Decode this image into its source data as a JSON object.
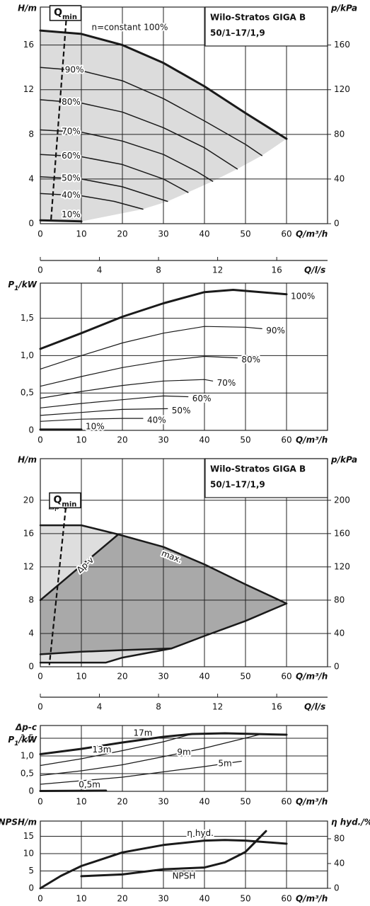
{
  "chart_data": [
    {
      "type": "line",
      "title": "Wilo-Stratos GIGA B",
      "subtitle": "50/1–17/1,9",
      "xlabel": "Q/m³/h",
      "ylabel": "H/m",
      "y2label": "p/kPa",
      "xlim": [
        0,
        70
      ],
      "xticks": [
        0,
        10,
        20,
        30,
        40,
        50,
        60
      ],
      "ylim": [
        0,
        19.4
      ],
      "yticks": [
        0,
        4,
        8,
        12,
        16
      ],
      "y2lim": [
        0,
        194
      ],
      "y2ticks": [
        0,
        40,
        80,
        120,
        160
      ],
      "x2label": "Q/l/s",
      "x2lim": [
        0,
        19.44
      ],
      "x2ticks": [
        0,
        4,
        8,
        12,
        16
      ],
      "qmin": {
        "main": "Q",
        "sub": "min",
        "x": [
          6.3,
          2.6
        ],
        "y": [
          18.2,
          0.3
        ]
      },
      "grid": true,
      "color": "#1a1a1a",
      "shade": "#dcdcdc",
      "series": [
        {
          "name": "n=constant 100%",
          "linewidth": 3,
          "x": [
            0,
            10,
            20,
            30,
            40,
            50,
            60
          ],
          "values": [
            17.3,
            17,
            16,
            14.4,
            12.3,
            9.9,
            7.6
          ]
        },
        {
          "name": "90%",
          "linewidth": 1.5,
          "x": [
            0,
            10,
            20,
            30,
            40,
            50,
            54
          ],
          "values": [
            14,
            13.7,
            12.8,
            11.2,
            9.2,
            7.1,
            6.1
          ]
        },
        {
          "name": "80%",
          "linewidth": 1.5,
          "x": [
            0,
            10,
            20,
            30,
            40,
            48
          ],
          "values": [
            11.1,
            10.8,
            10,
            8.6,
            6.8,
            4.9
          ]
        },
        {
          "name": "70%",
          "linewidth": 1.5,
          "x": [
            0,
            10,
            20,
            30,
            38,
            42
          ],
          "values": [
            8.4,
            8.2,
            7.4,
            6.2,
            4.7,
            3.8
          ]
        },
        {
          "name": "60%",
          "linewidth": 1.5,
          "x": [
            0,
            10,
            20,
            30,
            36
          ],
          "values": [
            6.2,
            6,
            5.3,
            4,
            2.8
          ]
        },
        {
          "name": "50%",
          "linewidth": 1.5,
          "x": [
            0,
            10,
            20,
            31
          ],
          "values": [
            4.2,
            4,
            3.3,
            2
          ]
        },
        {
          "name": "40%",
          "linewidth": 1.5,
          "x": [
            0,
            10,
            18,
            25
          ],
          "values": [
            2.7,
            2.5,
            2,
            1.3
          ]
        },
        {
          "name": "10%",
          "linewidth": 3,
          "x": [
            0,
            10
          ],
          "values": [
            0.3,
            0.2
          ]
        }
      ]
    },
    {
      "type": "line",
      "xlabel": "Q/m³/h",
      "ylabel": {
        "main": "P",
        "sub": "1",
        "unit": "/kW"
      },
      "xlim": [
        0,
        70
      ],
      "xticks": [
        0,
        10,
        20,
        30,
        40,
        50,
        60
      ],
      "ylim": [
        0,
        1.97
      ],
      "yticks": [
        0,
        {
          "value": 0.5,
          "label": "0,5"
        },
        {
          "value": 1,
          "label": "1,0"
        },
        {
          "value": 1.5,
          "label": "1,5"
        }
      ],
      "grid": true,
      "color": "#1a1a1a",
      "series": [
        {
          "name": "100%",
          "linewidth": 3,
          "x": [
            0,
            10,
            20,
            30,
            40,
            47,
            60
          ],
          "values": [
            1.09,
            1.3,
            1.52,
            1.7,
            1.85,
            1.88,
            1.82
          ]
        },
        {
          "name": "90%",
          "linewidth": 1.2,
          "x": [
            0,
            10,
            20,
            30,
            40,
            50,
            54
          ],
          "values": [
            0.82,
            1,
            1.17,
            1.3,
            1.39,
            1.38,
            1.36
          ]
        },
        {
          "name": "80%",
          "linewidth": 1.2,
          "x": [
            0,
            10,
            20,
            30,
            40,
            48
          ],
          "values": [
            0.59,
            0.72,
            0.84,
            0.93,
            0.99,
            0.97
          ]
        },
        {
          "name": "70%",
          "linewidth": 1.2,
          "x": [
            0,
            10,
            20,
            30,
            40,
            42
          ],
          "values": [
            0.43,
            0.52,
            0.6,
            0.66,
            0.68,
            0.66
          ]
        },
        {
          "name": "60%",
          "linewidth": 1.2,
          "x": [
            0,
            10,
            20,
            30,
            36
          ],
          "values": [
            0.3,
            0.36,
            0.41,
            0.46,
            0.45
          ]
        },
        {
          "name": "50%",
          "linewidth": 1.2,
          "x": [
            0,
            10,
            20,
            31
          ],
          "values": [
            0.2,
            0.24,
            0.28,
            0.29
          ]
        },
        {
          "name": "40%",
          "linewidth": 1.2,
          "x": [
            0,
            10,
            20,
            25
          ],
          "values": [
            0.12,
            0.15,
            0.16,
            0.16
          ]
        },
        {
          "name": "10%",
          "linewidth": 3,
          "x": [
            0,
            10
          ],
          "values": [
            0.01,
            0.01
          ]
        }
      ]
    },
    {
      "type": "range",
      "title": "Wilo-Stratos GIGA B",
      "subtitle": "50/1–17/1,9",
      "xlabel": "Q/m³/h",
      "ylabel": "H/m",
      "y2label": "p/kPa",
      "xlim": [
        0,
        70
      ],
      "xticks": [
        0,
        10,
        20,
        30,
        40,
        50,
        60
      ],
      "ylim": [
        0,
        25
      ],
      "yticks": [
        0,
        4,
        8,
        12,
        16,
        20
      ],
      "y2lim": [
        0,
        250
      ],
      "y2ticks": [
        0,
        40,
        80,
        120,
        160,
        200
      ],
      "x2label": "Q/l/s",
      "x2lim": [
        0,
        19.44
      ],
      "x2ticks": [
        0,
        4,
        8,
        12,
        16
      ],
      "qmin": {
        "main": "Q",
        "sub": "min",
        "x": [
          6.2,
          2.2
        ],
        "y": [
          19.1,
          0.2
        ]
      },
      "grid": true,
      "color": "#1a1a1a",
      "colors": {
        "band": "#dedede",
        "range": "#a9a9a9"
      },
      "series": [
        {
          "name": "Δp-c",
          "linewidth": 2.5,
          "x": [
            0,
            10,
            19
          ],
          "values": [
            17,
            17,
            15.9
          ]
        },
        {
          "name": "Δp-v",
          "linewidth": 2.5,
          "x": [
            0,
            19
          ],
          "values": [
            8,
            15.9
          ]
        },
        {
          "name": "max.",
          "linewidth": 2.5,
          "x": [
            19,
            30,
            40,
            50,
            60
          ],
          "values": [
            15.9,
            14.4,
            12.3,
            9.9,
            7.6
          ]
        },
        {
          "linewidth": 2.5,
          "x": [
            60,
            50,
            40,
            32,
            20,
            16,
            0
          ],
          "values": [
            7.6,
            5.5,
            3.7,
            2.2,
            1.1,
            0.5,
            0.5
          ]
        },
        {
          "linewidth": 2.5,
          "x": [
            0,
            10,
            20,
            32
          ],
          "values": [
            1.5,
            1.8,
            2,
            2.2
          ]
        }
      ]
    },
    {
      "type": "line",
      "xlabel": "Q/m³/h",
      "ylabel_top": "Δp-c",
      "ylabel": {
        "main": "P",
        "sub": "1",
        "unit": "/kW"
      },
      "xlim": [
        0,
        70
      ],
      "xticks": [
        0,
        10,
        20,
        30,
        40,
        50,
        60
      ],
      "ylim": [
        0,
        1.86
      ],
      "yticks": [
        0,
        {
          "value": 0.5,
          "label": "0,5"
        },
        {
          "value": 1,
          "label": "1,0"
        },
        {
          "value": 1.5,
          "label": "1,5"
        }
      ],
      "grid": true,
      "color": "#1a1a1a",
      "series": [
        {
          "name": "17m",
          "linewidth": 3,
          "x": [
            0,
            10,
            20,
            30,
            37,
            45,
            60
          ],
          "values": [
            1.05,
            1.2,
            1.38,
            1.54,
            1.62,
            1.64,
            1.6
          ]
        },
        {
          "name": "13m",
          "linewidth": 1.2,
          "x": [
            0,
            10,
            20,
            30,
            37
          ],
          "values": [
            0.73,
            0.92,
            1.15,
            1.4,
            1.62
          ]
        },
        {
          "name": "9m",
          "linewidth": 1.2,
          "x": [
            0,
            10,
            20,
            30,
            40,
            54
          ],
          "values": [
            0.45,
            0.58,
            0.75,
            0.98,
            1.22,
            1.62
          ]
        },
        {
          "name": "5m",
          "linewidth": 1.2,
          "x": [
            0,
            20,
            40,
            49
          ],
          "values": [
            0.2,
            0.4,
            0.7,
            0.85
          ]
        },
        {
          "name": "0,5m",
          "linewidth": 3,
          "x": [
            0,
            16
          ],
          "values": [
            0.01,
            0.02
          ]
        }
      ]
    },
    {
      "type": "line",
      "xlabel": "Q/m³/h",
      "ylabel": "NPSH/m",
      "y2label": "η hyd./%",
      "xlim": [
        0,
        70
      ],
      "xticks": [
        0,
        10,
        20,
        30,
        40,
        50,
        60
      ],
      "ylim": [
        0,
        19.4
      ],
      "yticks": [
        0,
        5,
        10,
        15
      ],
      "y2lim": [
        0,
        108.6
      ],
      "y2ticks": [
        0,
        40,
        80
      ],
      "grid": true,
      "color": "#1a1a1a",
      "series": [
        {
          "name": "η hyd.",
          "axis": "y2",
          "linewidth": 3,
          "x": [
            0,
            5,
            10,
            20,
            30,
            40,
            45,
            50,
            60
          ],
          "values": [
            0,
            20,
            36,
            58,
            70,
            77,
            78,
            77,
            72
          ]
        },
        {
          "name": "NPSH",
          "linewidth": 3,
          "x": [
            10,
            20,
            30,
            40,
            45,
            50,
            55
          ],
          "values": [
            3.5,
            4,
            5.5,
            6,
            7.5,
            10.5,
            16.5
          ]
        }
      ]
    }
  ]
}
